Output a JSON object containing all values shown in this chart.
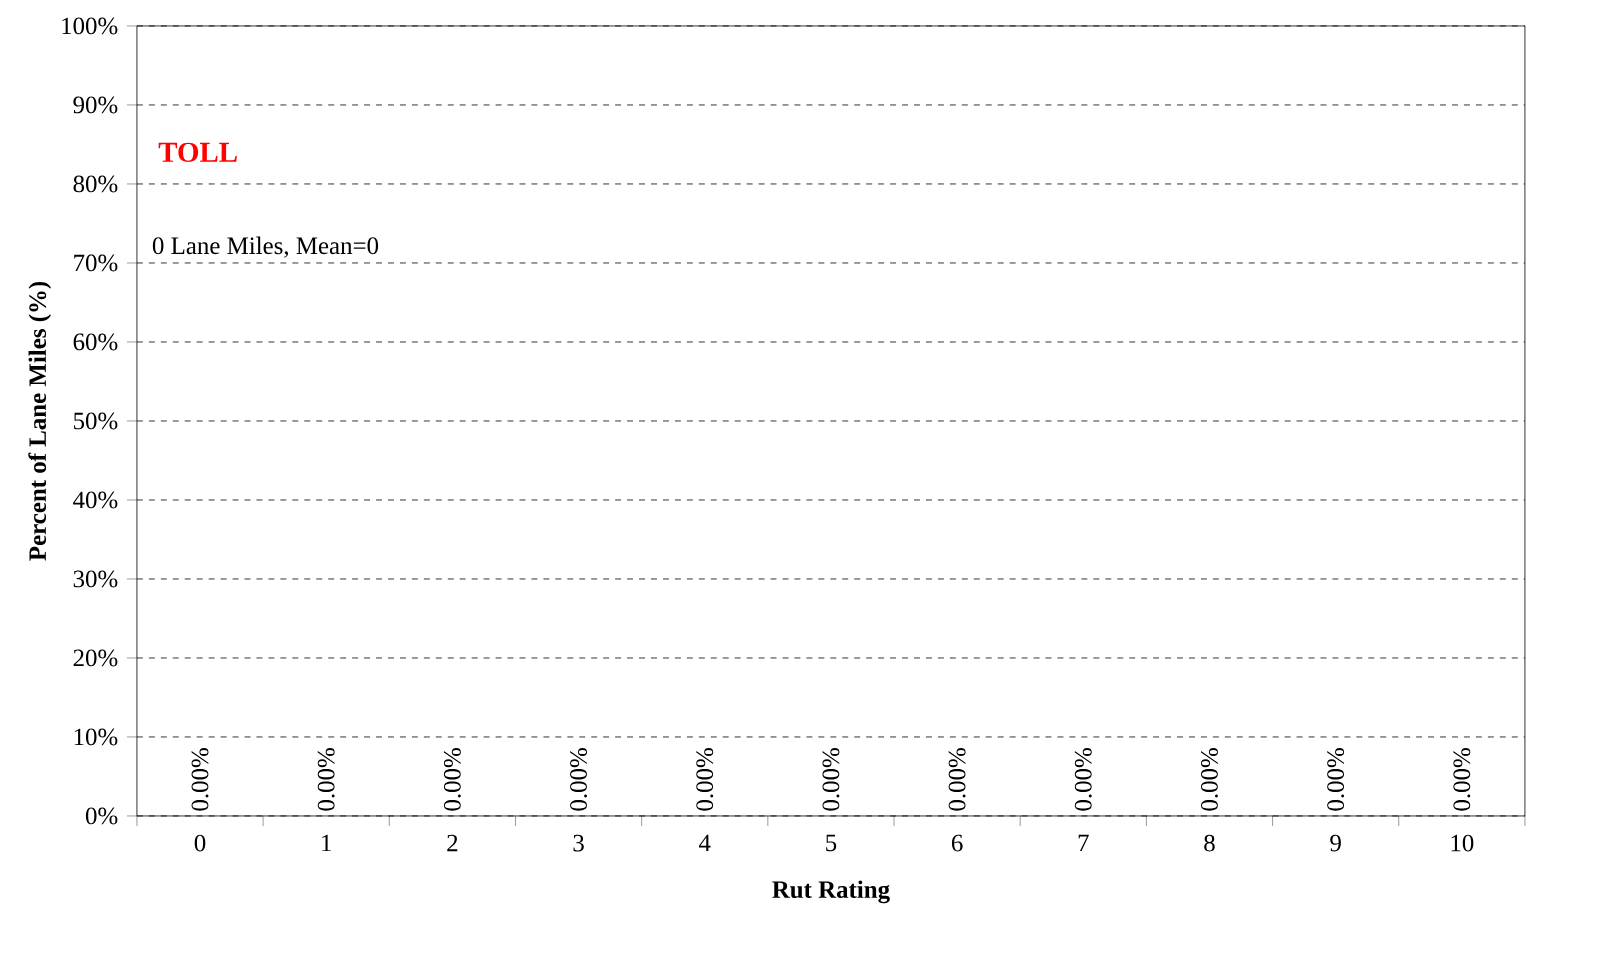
{
  "chart_data": {
    "type": "bar",
    "title": "TOLL",
    "xlabel": "Rut Rating",
    "ylabel": "Percent of Lane Miles (%)",
    "categories": [
      "0",
      "1",
      "2",
      "3",
      "4",
      "5",
      "6",
      "7",
      "8",
      "9",
      "10"
    ],
    "values": [
      0,
      0,
      0,
      0,
      0,
      0,
      0,
      0,
      0,
      0,
      0
    ],
    "value_labels": [
      "0.00%",
      "0.00%",
      "0.00%",
      "0.00%",
      "0.00%",
      "0.00%",
      "0.00%",
      "0.00%",
      "0.00%",
      "0.00%",
      "0.00%"
    ],
    "annotations": [
      "0 Lane Miles, Mean=0"
    ],
    "ylim": [
      0,
      100
    ],
    "yticks": [
      {
        "value": 0,
        "label": "0%"
      },
      {
        "value": 10,
        "label": "10%"
      },
      {
        "value": 20,
        "label": "20%"
      },
      {
        "value": 30,
        "label": "30%"
      },
      {
        "value": 40,
        "label": "40%"
      },
      {
        "value": 50,
        "label": "50%"
      },
      {
        "value": 60,
        "label": "60%"
      },
      {
        "value": 70,
        "label": "70%"
      },
      {
        "value": 80,
        "label": "80%"
      },
      {
        "value": 90,
        "label": "90%"
      },
      {
        "value": 100,
        "label": "100%"
      }
    ],
    "grid": "y"
  }
}
